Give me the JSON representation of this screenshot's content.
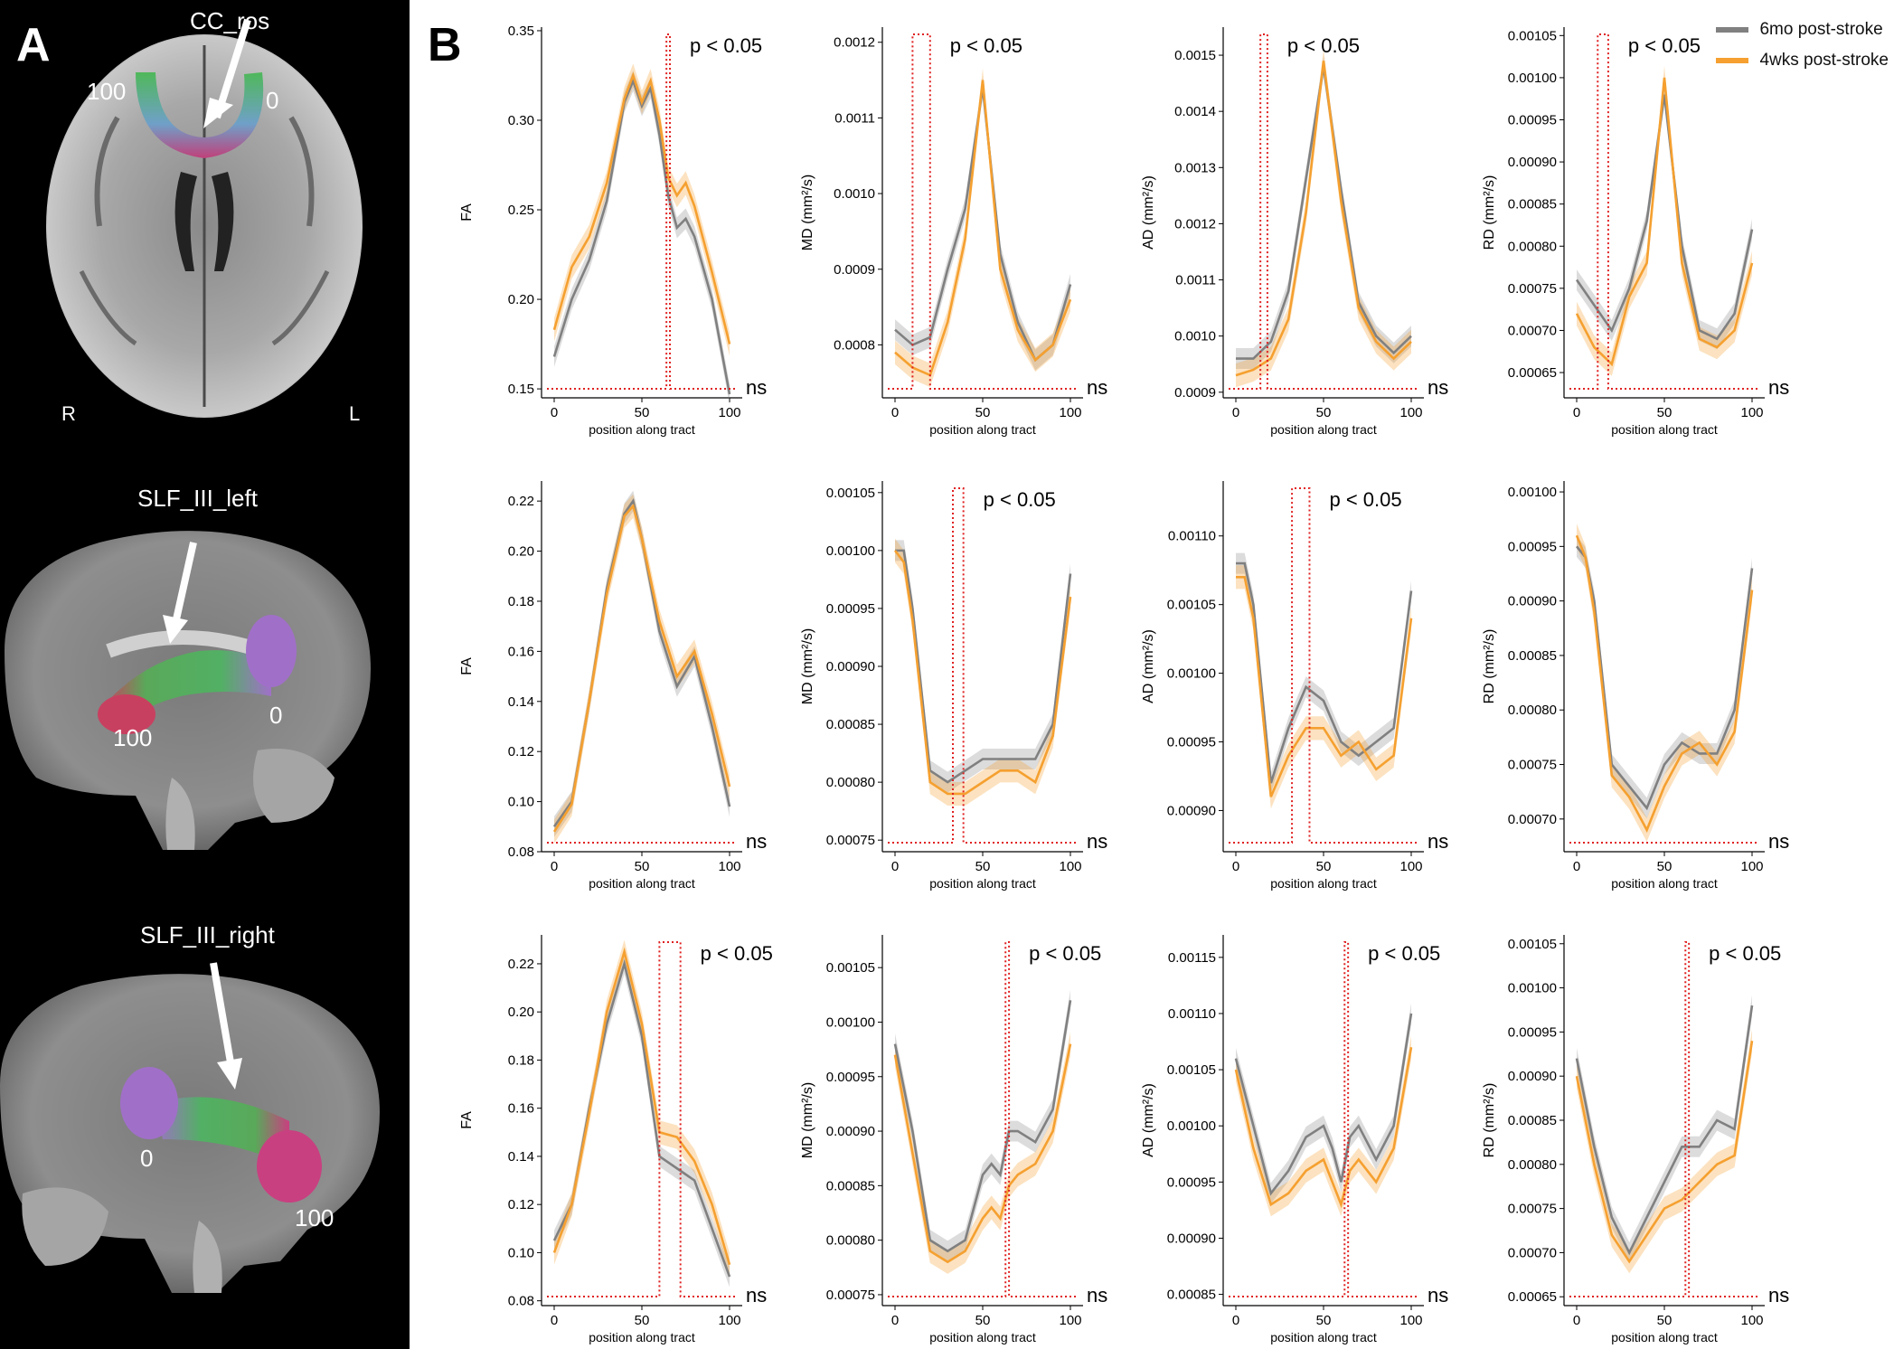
{
  "panel_a": {
    "letter": "A",
    "brains": [
      {
        "tract": "CC_ros",
        "labels": [
          "100",
          "0"
        ],
        "side_left": "R",
        "side_right": "L"
      },
      {
        "tract": "SLF_III_left",
        "labels": [
          "100",
          "0"
        ]
      },
      {
        "tract": "SLF_III_right",
        "labels": [
          "0",
          "100"
        ]
      }
    ]
  },
  "panel_b": {
    "letter": "B",
    "legend": [
      {
        "label": "6mo post-stroke",
        "color": "#808080"
      },
      {
        "label": "4wks post-stroke",
        "color": "#f5a030"
      }
    ]
  },
  "colors": {
    "grey": "#808080",
    "orange": "#f5a030",
    "sig": "#e02020"
  },
  "chart_data": [
    {
      "type": "line",
      "row": 0,
      "col": 0,
      "ylabel": "FA",
      "xlabel": "position along tract",
      "ylim": [
        0.145,
        0.352
      ],
      "yticks": [
        "0.15",
        "0.20",
        "0.25",
        "0.30",
        "0.35"
      ],
      "xticks": [
        "0",
        "50",
        "100"
      ],
      "x": [
        0,
        10,
        20,
        30,
        40,
        45,
        50,
        55,
        60,
        65,
        70,
        75,
        80,
        90,
        100
      ],
      "series": [
        {
          "name": "6mo post-stroke",
          "values": [
            0.168,
            0.2,
            0.222,
            0.255,
            0.31,
            0.322,
            0.308,
            0.318,
            0.292,
            0.258,
            0.24,
            0.245,
            0.235,
            0.2,
            0.147
          ]
        },
        {
          "name": "4wks post-stroke",
          "values": [
            0.183,
            0.218,
            0.235,
            0.265,
            0.312,
            0.325,
            0.31,
            0.322,
            0.3,
            0.268,
            0.258,
            0.265,
            0.252,
            0.215,
            0.175
          ]
        }
      ],
      "sig_regions": [
        [
          64,
          66
        ]
      ],
      "annotation": "p < 0.05",
      "ns_label": "ns"
    },
    {
      "type": "line",
      "row": 0,
      "col": 1,
      "ylabel": "MD (mm²/s)",
      "xlabel": "position along tract",
      "ylim": [
        0.00073,
        0.00122
      ],
      "yticks": [
        "0.0008",
        "0.0009",
        "0.0010",
        "0.0011",
        "0.0012"
      ],
      "xticks": [
        "0",
        "50",
        "100"
      ],
      "x": [
        0,
        10,
        20,
        30,
        40,
        50,
        60,
        70,
        80,
        90,
        100
      ],
      "series": [
        {
          "name": "6mo post-stroke",
          "values": [
            0.00082,
            0.0008,
            0.00081,
            0.0009,
            0.00098,
            0.00114,
            0.00092,
            0.00083,
            0.00078,
            0.0008,
            0.00088
          ]
        },
        {
          "name": "4wks post-stroke",
          "values": [
            0.00079,
            0.00077,
            0.00076,
            0.00083,
            0.00094,
            0.00115,
            0.0009,
            0.00082,
            0.00078,
            0.0008,
            0.00086
          ]
        }
      ],
      "sig_regions": [
        [
          10,
          20
        ]
      ],
      "annotation": "p < 0.05",
      "ns_label": "ns"
    },
    {
      "type": "line",
      "row": 0,
      "col": 2,
      "ylabel": "AD (mm²/s)",
      "xlabel": "position along tract",
      "ylim": [
        0.00089,
        0.00155
      ],
      "yticks": [
        "0.0009",
        "0.0010",
        "0.0011",
        "0.0012",
        "0.0013",
        "0.0014",
        "0.0015"
      ],
      "xticks": [
        "0",
        "50",
        "100"
      ],
      "x": [
        0,
        10,
        20,
        30,
        40,
        50,
        60,
        70,
        80,
        90,
        100
      ],
      "series": [
        {
          "name": "6mo post-stroke",
          "values": [
            0.00096,
            0.00096,
            0.00099,
            0.00108,
            0.00128,
            0.00148,
            0.00126,
            0.00106,
            0.001,
            0.00097,
            0.001
          ]
        },
        {
          "name": "4wks post-stroke",
          "values": [
            0.00093,
            0.00094,
            0.00096,
            0.00103,
            0.00122,
            0.00149,
            0.00124,
            0.00105,
            0.00099,
            0.00096,
            0.00099
          ]
        }
      ],
      "sig_regions": [
        [
          14,
          18
        ]
      ],
      "annotation": "p < 0.05",
      "ns_label": "ns"
    },
    {
      "type": "line",
      "row": 0,
      "col": 3,
      "ylabel": "RD (mm²/s)",
      "xlabel": "position along tract",
      "ylim": [
        0.00062,
        0.00106
      ],
      "yticks": [
        "0.00065",
        "0.00070",
        "0.00075",
        "0.00080",
        "0.00085",
        "0.00090",
        "0.00095",
        "0.00100",
        "0.00105"
      ],
      "xticks": [
        "0",
        "50",
        "100"
      ],
      "x": [
        0,
        10,
        20,
        30,
        40,
        50,
        60,
        70,
        80,
        90,
        100
      ],
      "series": [
        {
          "name": "6mo post-stroke",
          "values": [
            0.00076,
            0.00073,
            0.0007,
            0.00075,
            0.00083,
            0.00098,
            0.0008,
            0.0007,
            0.00069,
            0.00072,
            0.00082
          ]
        },
        {
          "name": "4wks post-stroke",
          "values": [
            0.00072,
            0.00068,
            0.00066,
            0.00074,
            0.00078,
            0.001,
            0.00078,
            0.00069,
            0.00068,
            0.0007,
            0.00078
          ]
        }
      ],
      "sig_regions": [
        [
          12,
          18
        ]
      ],
      "annotation": "p < 0.05",
      "ns_label": "ns"
    },
    {
      "type": "line",
      "row": 1,
      "col": 0,
      "ylabel": "FA",
      "xlabel": "position along tract",
      "ylim": [
        0.08,
        0.228
      ],
      "yticks": [
        "0.08",
        "0.10",
        "0.12",
        "0.14",
        "0.16",
        "0.18",
        "0.20",
        "0.22"
      ],
      "xticks": [
        "0",
        "50",
        "100"
      ],
      "x": [
        0,
        10,
        20,
        30,
        40,
        45,
        50,
        60,
        70,
        80,
        90,
        100
      ],
      "series": [
        {
          "name": "6mo post-stroke",
          "values": [
            0.09,
            0.1,
            0.14,
            0.185,
            0.215,
            0.22,
            0.205,
            0.168,
            0.146,
            0.158,
            0.13,
            0.098
          ]
        },
        {
          "name": "4wks post-stroke",
          "values": [
            0.088,
            0.099,
            0.14,
            0.183,
            0.214,
            0.218,
            0.205,
            0.172,
            0.15,
            0.16,
            0.135,
            0.106
          ]
        }
      ],
      "sig_regions": [],
      "annotation": "",
      "ns_label": "ns"
    },
    {
      "type": "line",
      "row": 1,
      "col": 1,
      "ylabel": "MD (mm²/s)",
      "xlabel": "position along tract",
      "ylim": [
        0.00074,
        0.00106
      ],
      "yticks": [
        "0.00075",
        "0.00080",
        "0.00085",
        "0.00090",
        "0.00095",
        "0.00100",
        "0.00105"
      ],
      "xticks": [
        "0",
        "50",
        "100"
      ],
      "x": [
        0,
        5,
        10,
        20,
        30,
        40,
        50,
        60,
        70,
        80,
        90,
        100
      ],
      "series": [
        {
          "name": "6mo post-stroke",
          "values": [
            0.001,
            0.001,
            0.00095,
            0.00081,
            0.0008,
            0.00081,
            0.00082,
            0.00082,
            0.00082,
            0.00082,
            0.00085,
            0.00098
          ]
        },
        {
          "name": "4wks post-stroke",
          "values": [
            0.001,
            0.00099,
            0.00094,
            0.0008,
            0.00079,
            0.00079,
            0.0008,
            0.00081,
            0.00081,
            0.0008,
            0.00084,
            0.00096
          ]
        }
      ],
      "sig_regions": [
        [
          33,
          39
        ]
      ],
      "annotation": "p < 0.05",
      "ns_label": "ns"
    },
    {
      "type": "line",
      "row": 1,
      "col": 2,
      "ylabel": "AD (mm²/s)",
      "xlabel": "position along tract",
      "ylim": [
        0.00087,
        0.00114
      ],
      "yticks": [
        "0.00090",
        "0.00095",
        "0.00100",
        "0.00105",
        "0.00110"
      ],
      "xticks": [
        "0",
        "50",
        "100"
      ],
      "x": [
        0,
        5,
        10,
        20,
        30,
        40,
        50,
        60,
        70,
        80,
        90,
        100
      ],
      "series": [
        {
          "name": "6mo post-stroke",
          "values": [
            0.00108,
            0.00108,
            0.00105,
            0.00092,
            0.00096,
            0.00099,
            0.00098,
            0.00095,
            0.00094,
            0.00095,
            0.00096,
            0.00106
          ]
        },
        {
          "name": "4wks post-stroke",
          "values": [
            0.00107,
            0.00107,
            0.00104,
            0.00091,
            0.00094,
            0.00096,
            0.00096,
            0.00094,
            0.00095,
            0.00093,
            0.00094,
            0.00104
          ]
        }
      ],
      "sig_regions": [
        [
          32,
          42
        ]
      ],
      "annotation": "p < 0.05",
      "ns_label": "ns"
    },
    {
      "type": "line",
      "row": 1,
      "col": 3,
      "ylabel": "RD (mm²/s)",
      "xlabel": "position along tract",
      "ylim": [
        0.00067,
        0.00101
      ],
      "yticks": [
        "0.00070",
        "0.00075",
        "0.00080",
        "0.00085",
        "0.00090",
        "0.00095",
        "0.00100"
      ],
      "xticks": [
        "0",
        "50",
        "100"
      ],
      "x": [
        0,
        5,
        10,
        20,
        30,
        40,
        50,
        60,
        70,
        80,
        90,
        100
      ],
      "series": [
        {
          "name": "6mo post-stroke",
          "values": [
            0.00095,
            0.00094,
            0.0009,
            0.00075,
            0.00073,
            0.00071,
            0.00075,
            0.00077,
            0.00076,
            0.00076,
            0.0008,
            0.00093
          ]
        },
        {
          "name": "4wks post-stroke",
          "values": [
            0.00096,
            0.00094,
            0.00089,
            0.00074,
            0.00072,
            0.00069,
            0.00073,
            0.00076,
            0.00077,
            0.00075,
            0.00078,
            0.00091
          ]
        }
      ],
      "sig_regions": [],
      "annotation": "",
      "ns_label": "ns"
    },
    {
      "type": "line",
      "row": 2,
      "col": 0,
      "ylabel": "FA",
      "xlabel": "position along tract",
      "ylim": [
        0.078,
        0.232
      ],
      "yticks": [
        "0.08",
        "0.10",
        "0.12",
        "0.14",
        "0.16",
        "0.18",
        "0.20",
        "0.22"
      ],
      "xticks": [
        "0",
        "50",
        "100"
      ],
      "x": [
        0,
        10,
        20,
        30,
        40,
        50,
        60,
        70,
        80,
        90,
        100
      ],
      "series": [
        {
          "name": "6mo post-stroke",
          "values": [
            0.105,
            0.12,
            0.16,
            0.195,
            0.22,
            0.19,
            0.14,
            0.135,
            0.13,
            0.11,
            0.09
          ]
        },
        {
          "name": "4wks post-stroke",
          "values": [
            0.1,
            0.12,
            0.158,
            0.2,
            0.225,
            0.195,
            0.15,
            0.148,
            0.138,
            0.12,
            0.095
          ]
        }
      ],
      "sig_regions": [
        [
          60,
          72
        ]
      ],
      "annotation": "p < 0.05",
      "ns_label": "ns"
    },
    {
      "type": "line",
      "row": 2,
      "col": 1,
      "ylabel": "MD (mm²/s)",
      "xlabel": "position along tract",
      "ylim": [
        0.00074,
        0.00108
      ],
      "yticks": [
        "0.00075",
        "0.00080",
        "0.00085",
        "0.00090",
        "0.00095",
        "0.00100",
        "0.00105"
      ],
      "xticks": [
        "0",
        "50",
        "100"
      ],
      "x": [
        0,
        10,
        20,
        30,
        40,
        50,
        55,
        60,
        65,
        70,
        80,
        90,
        100
      ],
      "series": [
        {
          "name": "6mo post-stroke",
          "values": [
            0.00098,
            0.0009,
            0.0008,
            0.00079,
            0.0008,
            0.00086,
            0.00087,
            0.00086,
            0.0009,
            0.0009,
            0.00089,
            0.00092,
            0.00102
          ]
        },
        {
          "name": "4wks post-stroke",
          "values": [
            0.00097,
            0.00088,
            0.00079,
            0.00078,
            0.00079,
            0.00082,
            0.00083,
            0.00082,
            0.00085,
            0.00086,
            0.00087,
            0.0009,
            0.00098
          ]
        }
      ],
      "sig_regions": [
        [
          63,
          65
        ]
      ],
      "annotation": "p < 0.05",
      "ns_label": "ns"
    },
    {
      "type": "line",
      "row": 2,
      "col": 2,
      "ylabel": "AD (mm²/s)",
      "xlabel": "position along tract",
      "ylim": [
        0.00084,
        0.00117
      ],
      "yticks": [
        "0.00085",
        "0.00090",
        "0.00095",
        "0.00100",
        "0.00105",
        "0.00110",
        "0.00115"
      ],
      "xticks": [
        "0",
        "50",
        "100"
      ],
      "x": [
        0,
        10,
        20,
        30,
        40,
        50,
        55,
        60,
        65,
        70,
        80,
        90,
        100
      ],
      "series": [
        {
          "name": "6mo post-stroke",
          "values": [
            0.00106,
            0.001,
            0.00094,
            0.00096,
            0.00099,
            0.001,
            0.00098,
            0.00095,
            0.00099,
            0.001,
            0.00097,
            0.001,
            0.0011
          ]
        },
        {
          "name": "4wks post-stroke",
          "values": [
            0.00105,
            0.00098,
            0.00093,
            0.00094,
            0.00096,
            0.00097,
            0.00095,
            0.00093,
            0.00096,
            0.00097,
            0.00095,
            0.00098,
            0.00107
          ]
        }
      ],
      "sig_regions": [
        [
          62,
          64
        ]
      ],
      "annotation": "p < 0.05",
      "ns_label": "ns"
    },
    {
      "type": "line",
      "row": 2,
      "col": 3,
      "ylabel": "RD (mm²/s)",
      "xlabel": "position along tract",
      "ylim": [
        0.00064,
        0.00106
      ],
      "yticks": [
        "0.00065",
        "0.00070",
        "0.00075",
        "0.00080",
        "0.00085",
        "0.00090",
        "0.00095",
        "0.00100",
        "0.00105"
      ],
      "xticks": [
        "0",
        "50",
        "100"
      ],
      "x": [
        0,
        10,
        20,
        30,
        40,
        50,
        60,
        70,
        80,
        90,
        100
      ],
      "series": [
        {
          "name": "6mo post-stroke",
          "values": [
            0.00092,
            0.00082,
            0.00074,
            0.0007,
            0.00074,
            0.00078,
            0.00082,
            0.00082,
            0.00085,
            0.00084,
            0.00098
          ]
        },
        {
          "name": "4wks post-stroke",
          "values": [
            0.0009,
            0.0008,
            0.00072,
            0.00069,
            0.00072,
            0.00075,
            0.00076,
            0.00078,
            0.0008,
            0.00081,
            0.00094
          ]
        }
      ],
      "sig_regions": [
        [
          62,
          64
        ]
      ],
      "annotation": "p < 0.05",
      "ns_label": "ns"
    }
  ]
}
